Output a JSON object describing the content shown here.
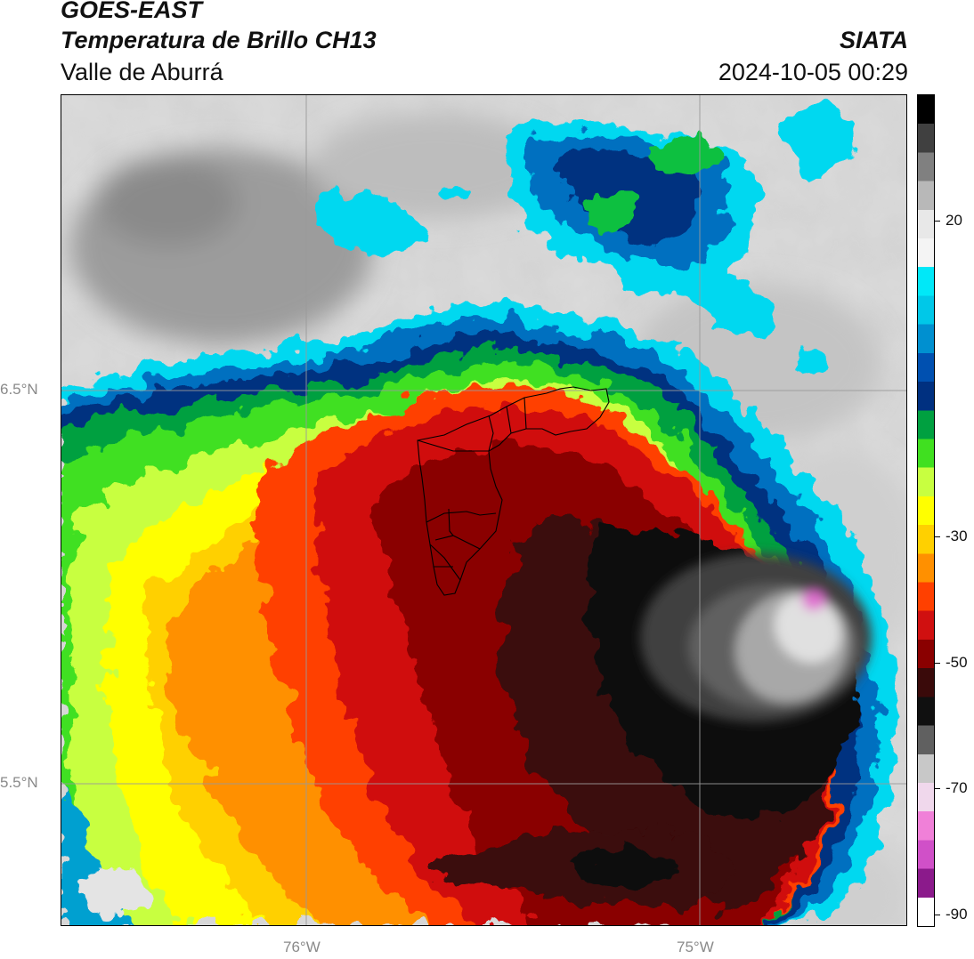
{
  "header": {
    "satellite": "GOES-EAST",
    "product": "Temperatura de Brillo CH13",
    "region": "Valle de Aburrá",
    "organization": "SIATA",
    "timestamp": "2024-10-05 00:29"
  },
  "map": {
    "lat_labels": [
      "6.5°N",
      "5.5°N"
    ],
    "lon_labels": [
      "76°W",
      "75°W"
    ],
    "gridline_color": "#9a9a9a",
    "boundary_color": "#000000"
  },
  "colorbar": {
    "tick_labels": [
      "20",
      "-30",
      "-50",
      "-70",
      "-90"
    ],
    "range": [
      -90,
      40
    ],
    "palette": [
      "#ffffff",
      "#8b1a8b",
      "#d050c8",
      "#f080d8",
      "#f0d8ec",
      "#c8c8c8",
      "#606060",
      "#101010",
      "#3a0a0a",
      "#8a0000",
      "#d01010",
      "#ff4000",
      "#ff9000",
      "#ffd000",
      "#ffff00",
      "#c8ff40",
      "#40e020",
      "#00a040",
      "#003080",
      "#0050b0",
      "#0090d0",
      "#00c8e8",
      "#00e8f8",
      "#f4f4f4",
      "#e8e8e8",
      "#b8b8b8",
      "#808080",
      "#404040",
      "#000000"
    ]
  }
}
